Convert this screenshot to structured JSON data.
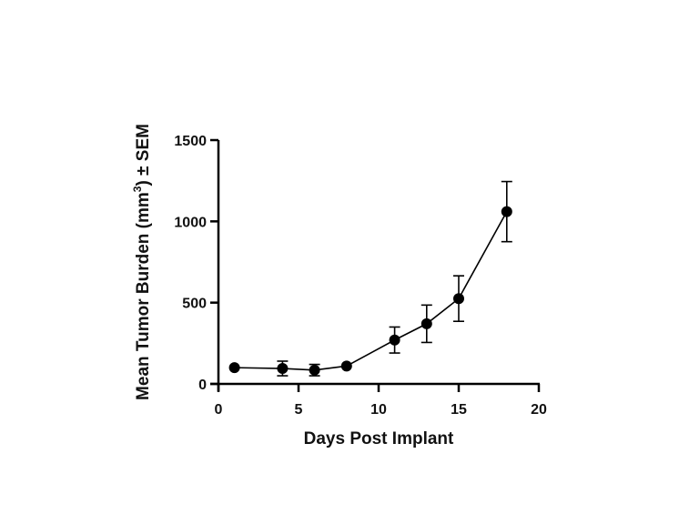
{
  "chart_data": {
    "type": "line",
    "title": "",
    "xlabel": "Days Post Implant",
    "ylabel": "Mean Tumor Burden (mm³) ± SEM",
    "xlim": [
      0,
      20
    ],
    "ylim": [
      0,
      1500
    ],
    "xticks": [
      0,
      5,
      10,
      15,
      20
    ],
    "yticks": [
      0,
      500,
      1000,
      1500
    ],
    "grid": false,
    "legend": null,
    "series": [
      {
        "name": "Mean Tumor Burden",
        "marker": "circle",
        "color": "#000000",
        "x": [
          1,
          4,
          6,
          8,
          11,
          13,
          15,
          18
        ],
        "values": [
          100,
          95,
          85,
          110,
          270,
          370,
          525,
          1060
        ],
        "error": [
          0,
          45,
          35,
          0,
          80,
          115,
          140,
          185
        ]
      }
    ]
  },
  "axes": {
    "x_title": "Days Post Implant",
    "y_title_main": "Mean Tumor Burden (mm",
    "y_title_sup": "3",
    "y_title_tail": ") ± SEM"
  }
}
